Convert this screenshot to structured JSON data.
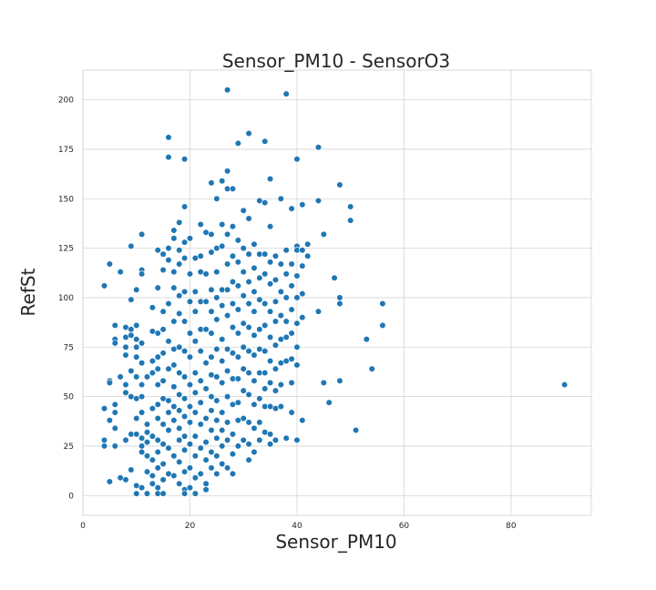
{
  "chart_data": {
    "type": "scatter",
    "title": "Sensor_PM10 - SensorO3",
    "xlabel": "Sensor_PM10",
    "ylabel": "RefSt",
    "xlim": [
      0,
      95
    ],
    "ylim": [
      -10,
      215
    ],
    "xticks": [
      0,
      20,
      40,
      60,
      80
    ],
    "yticks": [
      0,
      25,
      50,
      75,
      100,
      125,
      150,
      175,
      200
    ],
    "grid": true,
    "point_color": "#1f77b4",
    "points": [
      [
        4,
        106
      ],
      [
        4,
        28
      ],
      [
        4,
        25
      ],
      [
        4,
        44
      ],
      [
        5,
        117
      ],
      [
        5,
        58
      ],
      [
        5,
        57
      ],
      [
        5,
        38
      ],
      [
        5,
        7
      ],
      [
        6,
        86
      ],
      [
        6,
        79
      ],
      [
        6,
        77
      ],
      [
        6,
        46
      ],
      [
        6,
        42
      ],
      [
        6,
        34
      ],
      [
        6,
        25
      ],
      [
        7,
        113
      ],
      [
        7,
        60
      ],
      [
        7,
        9
      ],
      [
        8,
        85
      ],
      [
        8,
        75
      ],
      [
        8,
        80
      ],
      [
        8,
        71
      ],
      [
        8,
        56
      ],
      [
        8,
        52
      ],
      [
        8,
        8
      ],
      [
        8,
        28
      ],
      [
        9,
        126
      ],
      [
        9,
        99
      ],
      [
        9,
        84
      ],
      [
        9,
        81
      ],
      [
        9,
        63
      ],
      [
        9,
        50
      ],
      [
        9,
        31
      ],
      [
        9,
        13
      ],
      [
        10,
        104
      ],
      [
        10,
        86
      ],
      [
        10,
        79
      ],
      [
        10,
        75
      ],
      [
        10,
        70
      ],
      [
        10,
        60
      ],
      [
        10,
        49
      ],
      [
        10,
        39
      ],
      [
        10,
        31
      ],
      [
        10,
        5
      ],
      [
        10,
        1
      ],
      [
        11,
        132
      ],
      [
        11,
        114
      ],
      [
        11,
        112
      ],
      [
        11,
        77
      ],
      [
        11,
        67
      ],
      [
        11,
        56
      ],
      [
        11,
        50
      ],
      [
        11,
        42
      ],
      [
        11,
        29
      ],
      [
        11,
        25
      ],
      [
        11,
        22
      ],
      [
        11,
        4
      ],
      [
        12,
        36
      ],
      [
        12,
        32
      ],
      [
        12,
        27
      ],
      [
        12,
        20
      ],
      [
        12,
        12
      ],
      [
        12,
        60
      ],
      [
        12,
        1
      ],
      [
        13,
        95
      ],
      [
        13,
        83
      ],
      [
        13,
        62
      ],
      [
        13,
        68
      ],
      [
        13,
        44
      ],
      [
        13,
        30
      ],
      [
        13,
        18
      ],
      [
        13,
        10
      ],
      [
        13,
        6
      ],
      [
        14,
        124
      ],
      [
        14,
        105
      ],
      [
        14,
        82
      ],
      [
        14,
        70
      ],
      [
        14,
        64
      ],
      [
        14,
        56
      ],
      [
        14,
        46
      ],
      [
        14,
        39
      ],
      [
        14,
        28
      ],
      [
        14,
        22
      ],
      [
        14,
        14
      ],
      [
        14,
        4
      ],
      [
        14,
        1
      ],
      [
        15,
        122
      ],
      [
        15,
        114
      ],
      [
        15,
        93
      ],
      [
        15,
        84
      ],
      [
        15,
        72
      ],
      [
        15,
        58
      ],
      [
        15,
        49
      ],
      [
        15,
        36
      ],
      [
        15,
        26
      ],
      [
        15,
        16
      ],
      [
        15,
        8
      ],
      [
        15,
        1
      ],
      [
        16,
        181
      ],
      [
        16,
        171
      ],
      [
        16,
        125
      ],
      [
        16,
        119
      ],
      [
        16,
        97
      ],
      [
        16,
        78
      ],
      [
        16,
        64
      ],
      [
        16,
        48
      ],
      [
        16,
        42
      ],
      [
        16,
        33
      ],
      [
        16,
        24
      ],
      [
        16,
        11
      ],
      [
        17,
        134
      ],
      [
        17,
        130
      ],
      [
        17,
        113
      ],
      [
        17,
        105
      ],
      [
        17,
        88
      ],
      [
        17,
        74
      ],
      [
        17,
        66
      ],
      [
        17,
        55
      ],
      [
        17,
        45
      ],
      [
        17,
        38
      ],
      [
        17,
        20
      ],
      [
        17,
        10
      ],
      [
        18,
        138
      ],
      [
        18,
        124
      ],
      [
        18,
        117
      ],
      [
        18,
        101
      ],
      [
        18,
        92
      ],
      [
        18,
        75
      ],
      [
        18,
        62
      ],
      [
        18,
        51
      ],
      [
        18,
        43
      ],
      [
        18,
        34
      ],
      [
        18,
        28
      ],
      [
        18,
        17
      ],
      [
        18,
        6
      ],
      [
        19,
        170
      ],
      [
        19,
        146
      ],
      [
        19,
        128
      ],
      [
        19,
        120
      ],
      [
        19,
        103
      ],
      [
        19,
        88
      ],
      [
        19,
        73
      ],
      [
        19,
        60
      ],
      [
        19,
        49
      ],
      [
        19,
        40
      ],
      [
        19,
        30
      ],
      [
        19,
        23
      ],
      [
        19,
        12
      ],
      [
        19,
        3
      ],
      [
        19,
        1
      ],
      [
        20,
        130
      ],
      [
        20,
        112
      ],
      [
        20,
        98
      ],
      [
        20,
        82
      ],
      [
        20,
        70
      ],
      [
        20,
        56
      ],
      [
        20,
        45
      ],
      [
        20,
        37
      ],
      [
        20,
        26
      ],
      [
        20,
        14
      ],
      [
        20,
        4
      ],
      [
        21,
        120
      ],
      [
        21,
        103
      ],
      [
        21,
        93
      ],
      [
        21,
        78
      ],
      [
        21,
        62
      ],
      [
        21,
        52
      ],
      [
        21,
        42
      ],
      [
        21,
        30
      ],
      [
        21,
        20
      ],
      [
        21,
        9
      ],
      [
        21,
        1
      ],
      [
        22,
        137
      ],
      [
        22,
        121
      ],
      [
        22,
        113
      ],
      [
        22,
        98
      ],
      [
        22,
        84
      ],
      [
        22,
        73
      ],
      [
        22,
        58
      ],
      [
        22,
        47
      ],
      [
        22,
        36
      ],
      [
        22,
        24
      ],
      [
        22,
        11
      ],
      [
        23,
        133
      ],
      [
        23,
        112
      ],
      [
        23,
        98
      ],
      [
        23,
        84
      ],
      [
        23,
        67
      ],
      [
        23,
        54
      ],
      [
        23,
        39
      ],
      [
        23,
        27
      ],
      [
        23,
        18
      ],
      [
        23,
        6
      ],
      [
        23,
        3
      ],
      [
        24,
        158
      ],
      [
        24,
        132
      ],
      [
        24,
        123
      ],
      [
        24,
        104
      ],
      [
        24,
        93
      ],
      [
        24,
        82
      ],
      [
        24,
        70
      ],
      [
        24,
        61
      ],
      [
        24,
        50
      ],
      [
        24,
        43
      ],
      [
        24,
        33
      ],
      [
        24,
        22
      ],
      [
        24,
        14
      ],
      [
        25,
        150
      ],
      [
        25,
        125
      ],
      [
        25,
        113
      ],
      [
        25,
        100
      ],
      [
        25,
        89
      ],
      [
        25,
        74
      ],
      [
        25,
        60
      ],
      [
        25,
        48
      ],
      [
        25,
        38
      ],
      [
        25,
        29
      ],
      [
        25,
        20
      ],
      [
        25,
        11
      ],
      [
        26,
        159
      ],
      [
        26,
        137
      ],
      [
        26,
        126
      ],
      [
        26,
        104
      ],
      [
        26,
        96
      ],
      [
        26,
        79
      ],
      [
        26,
        68
      ],
      [
        26,
        57
      ],
      [
        26,
        42
      ],
      [
        26,
        33
      ],
      [
        26,
        25
      ],
      [
        26,
        16
      ],
      [
        27,
        205
      ],
      [
        27,
        164
      ],
      [
        27,
        155
      ],
      [
        27,
        132
      ],
      [
        27,
        117
      ],
      [
        27,
        104
      ],
      [
        27,
        91
      ],
      [
        27,
        74
      ],
      [
        27,
        63
      ],
      [
        27,
        50
      ],
      [
        27,
        37
      ],
      [
        27,
        28
      ],
      [
        27,
        14
      ],
      [
        28,
        155
      ],
      [
        28,
        136
      ],
      [
        28,
        121
      ],
      [
        28,
        108
      ],
      [
        28,
        97
      ],
      [
        28,
        85
      ],
      [
        28,
        72
      ],
      [
        28,
        59
      ],
      [
        28,
        46
      ],
      [
        28,
        31
      ],
      [
        28,
        21
      ],
      [
        28,
        11
      ],
      [
        29,
        178
      ],
      [
        29,
        129
      ],
      [
        29,
        118
      ],
      [
        29,
        106
      ],
      [
        29,
        94
      ],
      [
        29,
        82
      ],
      [
        29,
        70
      ],
      [
        29,
        59
      ],
      [
        29,
        47
      ],
      [
        29,
        38
      ],
      [
        29,
        25
      ],
      [
        30,
        144
      ],
      [
        30,
        125
      ],
      [
        30,
        113
      ],
      [
        30,
        101
      ],
      [
        30,
        87
      ],
      [
        30,
        75
      ],
      [
        30,
        64
      ],
      [
        30,
        53
      ],
      [
        30,
        39
      ],
      [
        30,
        28
      ],
      [
        31,
        183
      ],
      [
        31,
        140
      ],
      [
        31,
        122
      ],
      [
        31,
        108
      ],
      [
        31,
        97
      ],
      [
        31,
        85
      ],
      [
        31,
        73
      ],
      [
        31,
        62
      ],
      [
        31,
        51
      ],
      [
        31,
        37
      ],
      [
        31,
        26
      ],
      [
        31,
        18
      ],
      [
        32,
        127
      ],
      [
        32,
        115
      ],
      [
        32,
        103
      ],
      [
        32,
        93
      ],
      [
        32,
        81
      ],
      [
        32,
        71
      ],
      [
        32,
        58
      ],
      [
        32,
        46
      ],
      [
        32,
        34
      ],
      [
        32,
        22
      ],
      [
        33,
        149
      ],
      [
        33,
        122
      ],
      [
        33,
        110
      ],
      [
        33,
        99
      ],
      [
        33,
        84
      ],
      [
        33,
        74
      ],
      [
        33,
        62
      ],
      [
        33,
        49
      ],
      [
        33,
        37
      ],
      [
        33,
        28
      ],
      [
        34,
        179
      ],
      [
        34,
        148
      ],
      [
        34,
        122
      ],
      [
        34,
        112
      ],
      [
        34,
        97
      ],
      [
        34,
        86
      ],
      [
        34,
        73
      ],
      [
        34,
        62
      ],
      [
        34,
        54
      ],
      [
        34,
        45
      ],
      [
        34,
        32
      ],
      [
        35,
        160
      ],
      [
        35,
        136
      ],
      [
        35,
        118
      ],
      [
        35,
        107
      ],
      [
        35,
        93
      ],
      [
        35,
        80
      ],
      [
        35,
        68
      ],
      [
        35,
        57
      ],
      [
        35,
        45
      ],
      [
        35,
        31
      ],
      [
        35,
        26
      ],
      [
        36,
        121
      ],
      [
        36,
        109
      ],
      [
        36,
        98
      ],
      [
        36,
        88
      ],
      [
        36,
        76
      ],
      [
        36,
        64
      ],
      [
        36,
        53
      ],
      [
        36,
        44
      ],
      [
        36,
        28
      ],
      [
        37,
        150
      ],
      [
        37,
        117
      ],
      [
        37,
        103
      ],
      [
        37,
        91
      ],
      [
        37,
        79
      ],
      [
        37,
        67
      ],
      [
        37,
        56
      ],
      [
        37,
        45
      ],
      [
        38,
        203
      ],
      [
        38,
        124
      ],
      [
        38,
        112
      ],
      [
        38,
        100
      ],
      [
        38,
        88
      ],
      [
        38,
        80
      ],
      [
        38,
        68
      ],
      [
        38,
        29
      ],
      [
        39,
        145
      ],
      [
        39,
        117
      ],
      [
        39,
        106
      ],
      [
        39,
        94
      ],
      [
        39,
        82
      ],
      [
        39,
        69
      ],
      [
        39,
        57
      ],
      [
        39,
        42
      ],
      [
        40,
        170
      ],
      [
        40,
        126
      ],
      [
        40,
        124
      ],
      [
        40,
        111
      ],
      [
        40,
        100
      ],
      [
        40,
        87
      ],
      [
        40,
        75
      ],
      [
        40,
        66
      ],
      [
        40,
        28
      ],
      [
        41,
        147
      ],
      [
        41,
        124
      ],
      [
        41,
        116
      ],
      [
        41,
        102
      ],
      [
        41,
        90
      ],
      [
        41,
        38
      ],
      [
        42,
        127
      ],
      [
        42,
        121
      ],
      [
        44,
        176
      ],
      [
        44,
        149
      ],
      [
        44,
        93
      ],
      [
        45,
        132
      ],
      [
        45,
        57
      ],
      [
        46,
        47
      ],
      [
        47,
        110
      ],
      [
        48,
        157
      ],
      [
        48,
        100
      ],
      [
        48,
        97
      ],
      [
        48,
        58
      ],
      [
        50,
        146
      ],
      [
        50,
        139
      ],
      [
        51,
        33
      ],
      [
        53,
        79
      ],
      [
        54,
        64
      ],
      [
        56,
        97
      ],
      [
        56,
        86
      ],
      [
        90,
        56
      ]
    ]
  }
}
